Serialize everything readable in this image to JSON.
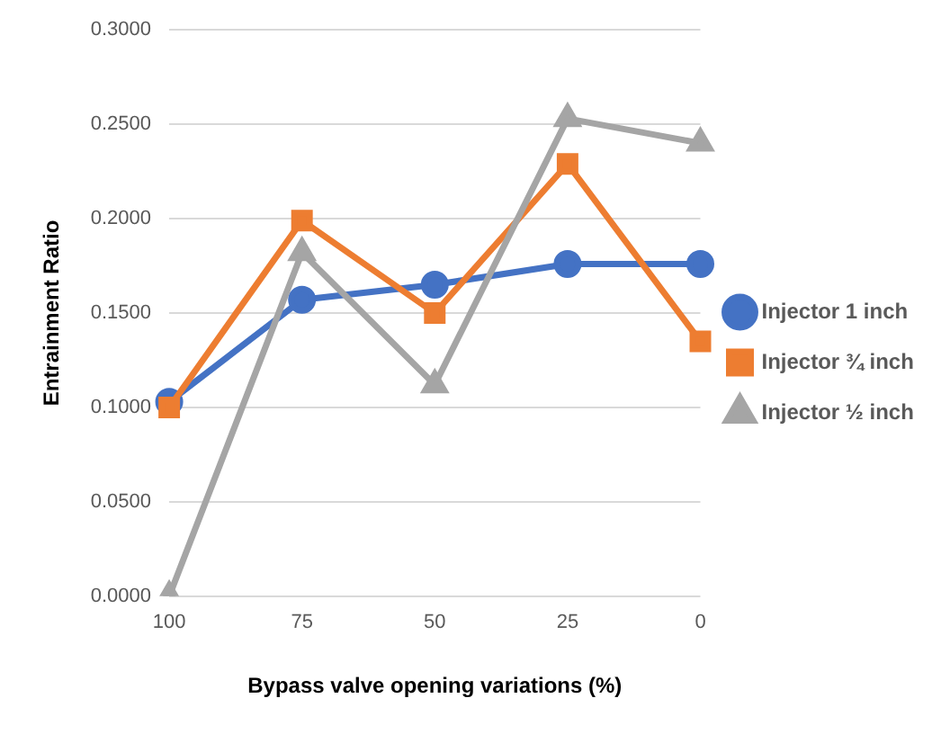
{
  "chart_data": {
    "type": "line",
    "xlabel": "Bypass valve opening variations (%)",
    "ylabel": "Entrainment Ratio",
    "categories": [
      "100",
      "75",
      "50",
      "25",
      "0"
    ],
    "series": [
      {
        "name": "Injector 1 inch",
        "color": "#4472c4",
        "marker": "circle",
        "values": [
          0.103,
          0.157,
          0.165,
          0.176,
          0.176
        ]
      },
      {
        "name": "Injector ¾ inch",
        "color": "#ed7d31",
        "marker": "square",
        "values": [
          0.1,
          0.199,
          0.15,
          0.229,
          0.135
        ]
      },
      {
        "name": "Injector ½ inch",
        "color": "#a5a5a5",
        "marker": "triangle",
        "values": [
          0.0,
          0.182,
          0.112,
          0.253,
          0.24
        ]
      }
    ],
    "ylim": [
      0,
      0.3
    ],
    "yticks": [
      {
        "value": 0,
        "label": "0.0000"
      },
      {
        "value": 0.05,
        "label": "0.0500"
      },
      {
        "value": 0.1,
        "label": "0.1000"
      },
      {
        "value": 0.15,
        "label": "0.1500"
      },
      {
        "value": 0.2,
        "label": "0.2000"
      },
      {
        "value": 0.25,
        "label": "0.2500"
      },
      {
        "value": 0.3,
        "label": "0.3000"
      }
    ],
    "grid": "y",
    "legend": "right"
  }
}
